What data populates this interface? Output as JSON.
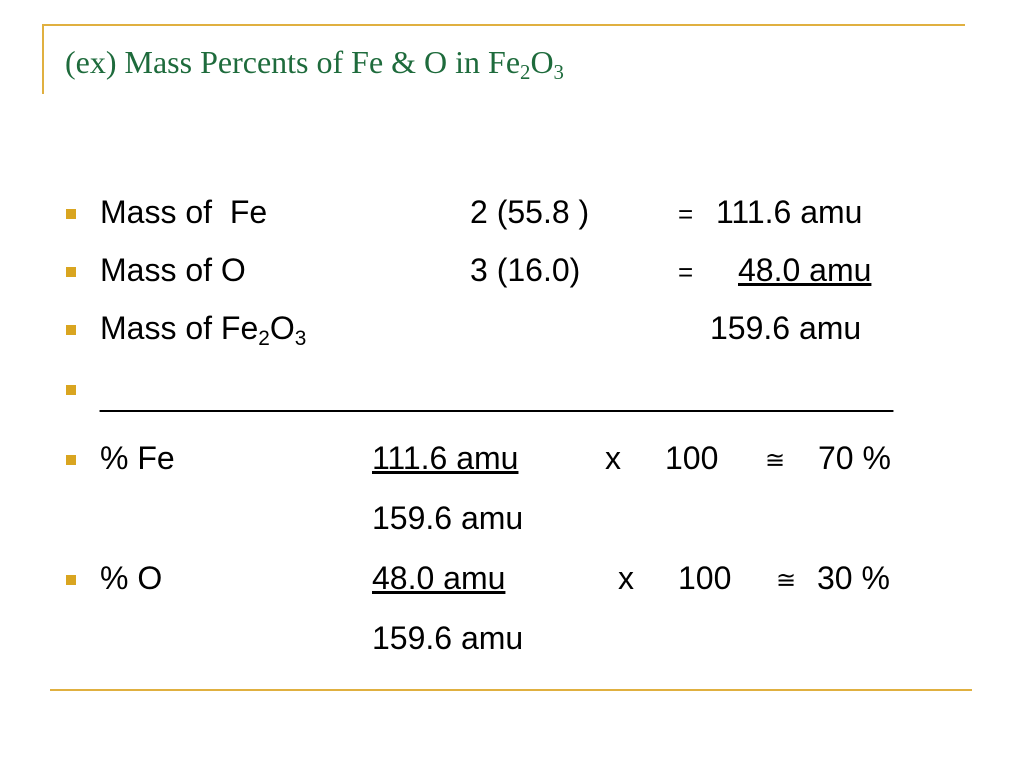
{
  "slide": {
    "title": {
      "main": "(ex) Mass Percents of Fe & O in Fe",
      "sub1": "2",
      "mid": "O",
      "sub2": "3"
    },
    "rows": [
      {
        "label": "Mass of  Fe",
        "expr": "2 (55.8 )",
        "eq": "=",
        "result": "111.6 amu"
      },
      {
        "label": "Mass of O",
        "expr": "3 (16.0)",
        "eq": "=",
        "result": "48.0 amu"
      },
      {
        "label": "Mass of Fe",
        "sub1": "2",
        "mid": "O",
        "sub2": "3",
        "result": "159.6 amu"
      },
      {
        "label": "______________________________________________"
      },
      {
        "label": "% Fe",
        "numerator": "111.6 amu",
        "times": "x",
        "factor": "100",
        "approx": "≅",
        "result": "70 %",
        "denominator": "159.6 amu"
      },
      {
        "label": "% O",
        "numerator": "48.0 amu",
        "times": "x",
        "factor": "100",
        "approx": "≅",
        "result": "30 %",
        "denominator": "159.6 amu"
      }
    ]
  }
}
